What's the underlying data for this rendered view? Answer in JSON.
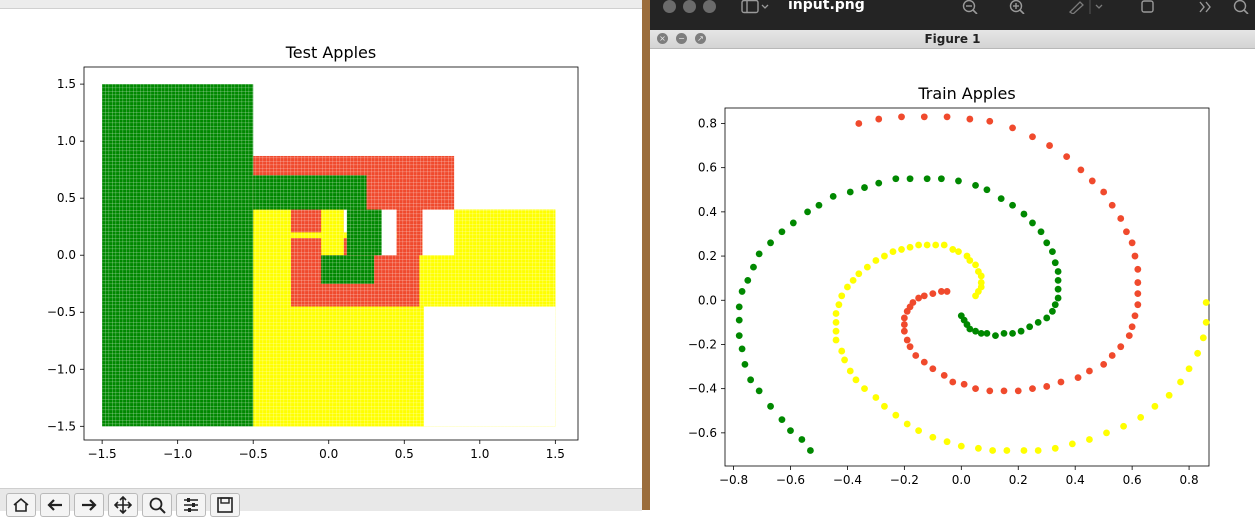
{
  "left_figure": {
    "toolbar_buttons": [
      {
        "icon": "home-icon"
      },
      {
        "icon": "back-arrow-icon"
      },
      {
        "icon": "forward-arrow-icon"
      },
      {
        "icon": "pan-icon"
      },
      {
        "icon": "zoom-icon"
      },
      {
        "icon": "configure-subplots-icon"
      },
      {
        "icon": "save-icon"
      }
    ],
    "chart_data": {
      "type": "scatter",
      "title": "Test Apples",
      "xlim": [
        -1.62,
        1.65
      ],
      "ylim": [
        -1.62,
        1.65
      ],
      "x_ticks": [
        "−1.5",
        "−1.0",
        "−0.5",
        "0.0",
        "0.5",
        "1.0",
        "1.5"
      ],
      "x_tick_values": [
        -1.5,
        -1.0,
        -0.5,
        0.0,
        0.5,
        1.0,
        1.5
      ],
      "y_ticks": [
        "1.5",
        "1.0",
        "0.5",
        "0.0",
        "−0.5",
        "−1.0",
        "−1.5"
      ],
      "y_tick_values": [
        1.5,
        1.0,
        0.5,
        0.0,
        -0.5,
        -1.0,
        -1.5
      ],
      "grid": false,
      "description": "dense grid of predicted class points",
      "regions": [
        {
          "color": "#ffff00",
          "x": [
            -0.5,
            1.5
          ],
          "y": [
            -1.5,
            0.4
          ]
        },
        {
          "color": "#f04a2d",
          "x": [
            -0.5,
            0.83
          ],
          "y": [
            0.2,
            0.87
          ]
        },
        {
          "color": "#f04a2d",
          "x": [
            -0.25,
            0.6
          ],
          "y": [
            -0.45,
            0.15
          ]
        },
        {
          "color": "#ffff00",
          "x": [
            0.8,
            1.5
          ],
          "y": [
            -0.45,
            0.4
          ]
        },
        {
          "color": "#ffffff",
          "x": [
            0.1,
            0.15
          ],
          "y": [
            0.2,
            0.4
          ]
        },
        {
          "color": "#ffffff",
          "x": [
            0.32,
            0.45
          ],
          "y": [
            0.0,
            0.4
          ]
        },
        {
          "color": "#ffffff",
          "x": [
            0.62,
            0.83
          ],
          "y": [
            0.0,
            0.4
          ]
        },
        {
          "color": "#ffff00",
          "x": [
            0.63,
            1.5
          ],
          "y": [
            -1.5,
            -0.3
          ]
        },
        {
          "color": "#ffff00",
          "x": [
            -0.5,
            0.63
          ],
          "y": [
            -1.5,
            -0.45
          ]
        },
        {
          "color": "#ffff00",
          "x": [
            -0.5,
            -0.25
          ],
          "y": [
            -0.45,
            0.4
          ]
        },
        {
          "color": "#ffff00",
          "x": [
            -0.05,
            0.1
          ],
          "y": [
            0.0,
            0.4
          ]
        },
        {
          "color": "#008800",
          "x": [
            0.12,
            0.35
          ],
          "y": [
            0.0,
            0.4
          ]
        },
        {
          "color": "#008800",
          "x": [
            -0.08,
            0.3
          ],
          "y": [
            -0.25,
            0.0
          ]
        },
        {
          "color": "#f04a2d",
          "x": [
            -0.25,
            -0.05
          ],
          "y": [
            -0.25,
            0.05
          ]
        },
        {
          "color": "#f04a2d",
          "x": [
            0.45,
            0.62
          ],
          "y": [
            0.0,
            0.4
          ]
        },
        {
          "color": "#008800",
          "x": [
            -0.5,
            0.25
          ],
          "y": [
            0.4,
            0.7
          ]
        },
        {
          "color": "#008800",
          "x": [
            -1.5,
            -0.5
          ],
          "y": [
            -1.5,
            1.5
          ]
        },
        {
          "color": "#ffffff",
          "x": [
            0.63,
            1.5
          ],
          "y": [
            -1.5,
            -0.45
          ]
        }
      ]
    }
  },
  "right_window": {
    "app_title": "input.png",
    "figure_title": "Figure 1",
    "chart_data": {
      "type": "scatter",
      "title": "Train Apples",
      "xlim": [
        -0.83,
        0.87
      ],
      "ylim": [
        -0.75,
        0.87
      ],
      "x_ticks": [
        "−0.8",
        "−0.6",
        "−0.4",
        "−0.2",
        "0.0",
        "0.2",
        "0.4",
        "0.6",
        "0.8"
      ],
      "x_tick_values": [
        -0.8,
        -0.6,
        -0.4,
        -0.2,
        0.0,
        0.2,
        0.4,
        0.6,
        0.8
      ],
      "y_ticks": [
        "0.8",
        "0.6",
        "0.4",
        "0.2",
        "0.0",
        "−0.2",
        "−0.4",
        "−0.6"
      ],
      "y_tick_values": [
        0.8,
        0.6,
        0.4,
        0.2,
        0.0,
        -0.2,
        -0.4,
        -0.6
      ],
      "grid": false,
      "series": [
        {
          "color": "#f04a2d",
          "values": [
            [
              -0.05,
              0.04
            ],
            [
              -0.07,
              0.04
            ],
            [
              -0.1,
              0.03
            ],
            [
              -0.13,
              0.02
            ],
            [
              -0.15,
              0.01
            ],
            [
              -0.17,
              -0.01
            ],
            [
              -0.18,
              -0.03
            ],
            [
              -0.19,
              -0.05
            ],
            [
              -0.2,
              -0.08
            ],
            [
              -0.2,
              -0.11
            ],
            [
              -0.2,
              -0.14
            ],
            [
              -0.19,
              -0.18
            ],
            [
              -0.18,
              -0.21
            ],
            [
              -0.16,
              -0.25
            ],
            [
              -0.13,
              -0.28
            ],
            [
              -0.1,
              -0.31
            ],
            [
              -0.06,
              -0.34
            ],
            [
              -0.03,
              -0.37
            ],
            [
              0.01,
              -0.38
            ],
            [
              0.05,
              -0.4
            ],
            [
              0.1,
              -0.41
            ],
            [
              0.15,
              -0.41
            ],
            [
              0.2,
              -0.41
            ],
            [
              0.25,
              -0.4
            ],
            [
              0.3,
              -0.39
            ],
            [
              0.35,
              -0.37
            ],
            [
              0.41,
              -0.35
            ],
            [
              0.45,
              -0.32
            ],
            [
              0.5,
              -0.29
            ],
            [
              0.53,
              -0.25
            ],
            [
              0.56,
              -0.21
            ],
            [
              0.59,
              -0.16
            ],
            [
              0.6,
              -0.12
            ],
            [
              0.61,
              -0.07
            ],
            [
              0.62,
              -0.02
            ],
            [
              0.62,
              0.03
            ],
            [
              0.62,
              0.08
            ],
            [
              0.62,
              0.14
            ],
            [
              0.61,
              0.2
            ],
            [
              0.6,
              0.26
            ],
            [
              0.58,
              0.31
            ],
            [
              0.56,
              0.37
            ],
            [
              0.53,
              0.43
            ],
            [
              0.5,
              0.49
            ],
            [
              0.46,
              0.54
            ],
            [
              0.42,
              0.59
            ],
            [
              0.37,
              0.65
            ],
            [
              0.31,
              0.7
            ],
            [
              0.25,
              0.74
            ],
            [
              0.18,
              0.78
            ],
            [
              0.1,
              0.81
            ],
            [
              0.03,
              0.82
            ],
            [
              -0.05,
              0.83
            ],
            [
              -0.13,
              0.83
            ],
            [
              -0.21,
              0.83
            ],
            [
              -0.29,
              0.82
            ],
            [
              -0.36,
              0.8
            ]
          ]
        },
        {
          "color": "#008800",
          "values": [
            [
              0.0,
              -0.07
            ],
            [
              0.01,
              -0.09
            ],
            [
              0.02,
              -0.11
            ],
            [
              0.03,
              -0.13
            ],
            [
              0.05,
              -0.14
            ],
            [
              0.07,
              -0.15
            ],
            [
              0.09,
              -0.15
            ],
            [
              0.12,
              -0.16
            ],
            [
              0.15,
              -0.15
            ],
            [
              0.18,
              -0.15
            ],
            [
              0.21,
              -0.14
            ],
            [
              0.24,
              -0.12
            ],
            [
              0.27,
              -0.1
            ],
            [
              0.3,
              -0.08
            ],
            [
              0.32,
              -0.05
            ],
            [
              0.33,
              -0.02
            ],
            [
              0.34,
              0.01
            ],
            [
              0.34,
              0.05
            ],
            [
              0.34,
              0.09
            ],
            [
              0.34,
              0.13
            ],
            [
              0.33,
              0.17
            ],
            [
              0.32,
              0.22
            ],
            [
              0.3,
              0.26
            ],
            [
              0.28,
              0.31
            ],
            [
              0.25,
              0.35
            ],
            [
              0.22,
              0.39
            ],
            [
              0.18,
              0.43
            ],
            [
              0.14,
              0.46
            ],
            [
              0.09,
              0.5
            ],
            [
              0.05,
              0.52
            ],
            [
              -0.01,
              0.54
            ],
            [
              -0.07,
              0.55
            ],
            [
              -0.12,
              0.55
            ],
            [
              -0.18,
              0.55
            ],
            [
              -0.23,
              0.55
            ],
            [
              -0.29,
              0.53
            ],
            [
              -0.34,
              0.51
            ],
            [
              -0.39,
              0.49
            ],
            [
              -0.45,
              0.47
            ],
            [
              -0.5,
              0.43
            ],
            [
              -0.54,
              0.4
            ],
            [
              -0.59,
              0.35
            ],
            [
              -0.63,
              0.31
            ],
            [
              -0.67,
              0.26
            ],
            [
              -0.71,
              0.21
            ],
            [
              -0.73,
              0.15
            ],
            [
              -0.75,
              0.09
            ],
            [
              -0.77,
              0.04
            ],
            [
              -0.78,
              -0.03
            ],
            [
              -0.78,
              -0.09
            ],
            [
              -0.78,
              -0.16
            ],
            [
              -0.77,
              -0.22
            ],
            [
              -0.76,
              -0.29
            ],
            [
              -0.74,
              -0.36
            ],
            [
              -0.71,
              -0.41
            ],
            [
              -0.67,
              -0.48
            ],
            [
              -0.63,
              -0.54
            ],
            [
              -0.6,
              -0.59
            ],
            [
              -0.56,
              -0.63
            ],
            [
              -0.53,
              -0.68
            ]
          ]
        },
        {
          "color": "#ffff00",
          "values": [
            [
              0.05,
              0.02
            ],
            [
              0.06,
              0.04
            ],
            [
              0.07,
              0.06
            ],
            [
              0.07,
              0.08
            ],
            [
              0.07,
              0.11
            ],
            [
              0.06,
              0.13
            ],
            [
              0.05,
              0.16
            ],
            [
              0.03,
              0.18
            ],
            [
              0.02,
              0.2
            ],
            [
              -0.01,
              0.22
            ],
            [
              -0.03,
              0.23
            ],
            [
              -0.06,
              0.25
            ],
            [
              -0.09,
              0.25
            ],
            [
              -0.12,
              0.25
            ],
            [
              -0.15,
              0.25
            ],
            [
              -0.18,
              0.24
            ],
            [
              -0.21,
              0.23
            ],
            [
              -0.24,
              0.22
            ],
            [
              -0.27,
              0.2
            ],
            [
              -0.3,
              0.18
            ],
            [
              -0.33,
              0.15
            ],
            [
              -0.36,
              0.12
            ],
            [
              -0.38,
              0.09
            ],
            [
              -0.4,
              0.06
            ],
            [
              -0.42,
              0.02
            ],
            [
              -0.43,
              -0.02
            ],
            [
              -0.44,
              -0.06
            ],
            [
              -0.44,
              -0.1
            ],
            [
              -0.44,
              -0.14
            ],
            [
              -0.44,
              -0.18
            ],
            [
              -0.42,
              -0.23
            ],
            [
              -0.41,
              -0.27
            ],
            [
              -0.39,
              -0.32
            ],
            [
              -0.37,
              -0.36
            ],
            [
              -0.34,
              -0.4
            ],
            [
              -0.3,
              -0.44
            ],
            [
              -0.27,
              -0.48
            ],
            [
              -0.23,
              -0.52
            ],
            [
              -0.19,
              -0.56
            ],
            [
              -0.15,
              -0.59
            ],
            [
              -0.1,
              -0.62
            ],
            [
              -0.05,
              -0.64
            ],
            [
              0.0,
              -0.66
            ],
            [
              0.06,
              -0.67
            ],
            [
              0.11,
              -0.68
            ],
            [
              0.16,
              -0.68
            ],
            [
              0.22,
              -0.68
            ],
            [
              0.27,
              -0.68
            ],
            [
              0.33,
              -0.67
            ],
            [
              0.39,
              -0.65
            ],
            [
              0.45,
              -0.63
            ],
            [
              0.51,
              -0.6
            ],
            [
              0.57,
              -0.57
            ],
            [
              0.63,
              -0.53
            ],
            [
              0.68,
              -0.48
            ],
            [
              0.73,
              -0.43
            ],
            [
              0.77,
              -0.37
            ],
            [
              0.8,
              -0.31
            ],
            [
              0.83,
              -0.24
            ],
            [
              0.85,
              -0.17
            ],
            [
              0.86,
              -0.1
            ],
            [
              0.86,
              -0.01
            ]
          ]
        }
      ]
    }
  }
}
